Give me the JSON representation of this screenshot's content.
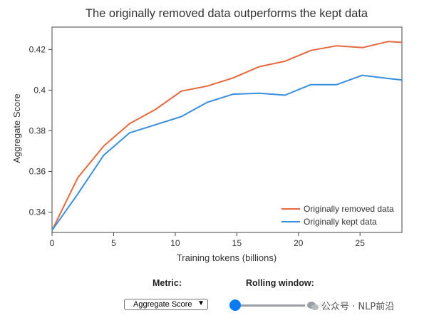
{
  "chart_data": {
    "type": "line",
    "title": "The originally removed data outperforms the kept data",
    "xlabel": "Training tokens (billions)",
    "ylabel": "Aggregate Score",
    "xlim": [
      0,
      28.4
    ],
    "ylim": [
      0.33,
      0.431
    ],
    "xticks": [
      0,
      5,
      10,
      15,
      20,
      25
    ],
    "yticks": [
      0.34,
      0.36,
      0.38,
      0.4,
      0.42
    ],
    "ytick_labels": [
      "0.34",
      "0.36",
      "0.38",
      "0.4",
      "0.42"
    ],
    "grid": false,
    "legend_position": "bottom-right",
    "series": [
      {
        "name": "Originally removed data",
        "color": "#e5683f",
        "x": [
          0,
          2.1,
          4.2,
          6.3,
          8.4,
          10.5,
          12.6,
          14.7,
          16.8,
          18.9,
          21.0,
          23.1,
          25.2,
          27.3,
          28.4
        ],
        "y": [
          0.331,
          0.357,
          0.3725,
          0.3835,
          0.3905,
          0.3995,
          0.402,
          0.406,
          0.4115,
          0.4142,
          0.4195,
          0.4218,
          0.4209,
          0.4239,
          0.4235
        ]
      },
      {
        "name": "Originally kept data",
        "color": "#3a8fdd",
        "x": [
          0,
          2.1,
          4.2,
          6.3,
          8.4,
          10.5,
          12.6,
          14.7,
          16.8,
          18.9,
          21.0,
          23.1,
          25.2,
          27.3,
          28.4
        ],
        "y": [
          0.331,
          0.349,
          0.368,
          0.379,
          0.383,
          0.387,
          0.394,
          0.398,
          0.3985,
          0.3975,
          0.4027,
          0.4027,
          0.4073,
          0.4057,
          0.405
        ]
      }
    ]
  },
  "controls": {
    "metric_label": "Metric:",
    "metric_value": "Aggregate Score",
    "window_label": "Rolling window:",
    "window_value": "0"
  },
  "watermark": "公众号 · NLP前沿"
}
